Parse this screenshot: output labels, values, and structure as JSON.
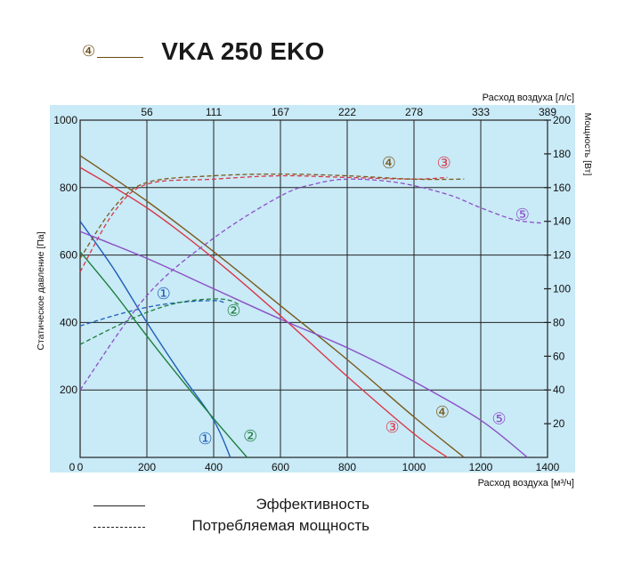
{
  "header": {
    "series_marker": "④",
    "title": "VKA 250 EKO"
  },
  "legend": {
    "efficiency_label": "Эффективность",
    "power_label": "Потребляемая мощность"
  },
  "chart_data": {
    "type": "line",
    "title": "VKA 250 EKO",
    "xlabel": "Расход воздуха [м³/ч]",
    "ylabel": "Статическое давление [Па]",
    "x2label": "Расход воздуха [л/с]",
    "y2label": "Мощность [Вт]",
    "xlim": [
      0,
      1400
    ],
    "ylim": [
      0,
      1000
    ],
    "y2lim": [
      0,
      200
    ],
    "xticks": [
      0,
      200,
      400,
      600,
      800,
      1000,
      1200,
      1400
    ],
    "yticks": [
      200,
      400,
      600,
      800,
      1000
    ],
    "y2ticks": [
      20,
      40,
      60,
      80,
      100,
      120,
      140,
      160,
      180,
      200
    ],
    "x2ticks": [
      {
        "at": 200,
        "label": "56"
      },
      {
        "at": 400,
        "label": "111"
      },
      {
        "at": 600,
        "label": "167"
      },
      {
        "at": 800,
        "label": "222"
      },
      {
        "at": 1000,
        "label": "278"
      },
      {
        "at": 1200,
        "label": "333"
      },
      {
        "at": 1400,
        "label": "389"
      }
    ],
    "y_zero_label": "0",
    "grid": true,
    "colors": {
      "plot_bg": "#c9eaf7",
      "grid": "#222222"
    },
    "series": [
      {
        "id": "1",
        "label": "①",
        "color": "#1f5fb8",
        "pressure": [
          [
            0,
            700
          ],
          [
            100,
            560
          ],
          [
            200,
            400
          ],
          [
            300,
            250
          ],
          [
            400,
            110
          ],
          [
            450,
            0
          ]
        ],
        "power": [
          [
            0,
            78
          ],
          [
            100,
            84
          ],
          [
            200,
            89
          ],
          [
            300,
            92
          ],
          [
            400,
            93
          ],
          [
            430,
            92
          ]
        ],
        "pressure_label_at": [
          375,
          56
        ],
        "power_label_at": [
          250,
          485
        ]
      },
      {
        "id": "2",
        "label": "②",
        "color": "#1c7f3c",
        "pressure": [
          [
            0,
            610
          ],
          [
            100,
            490
          ],
          [
            200,
            360
          ],
          [
            300,
            235
          ],
          [
            400,
            115
          ],
          [
            500,
            0
          ]
        ],
        "power": [
          [
            0,
            67
          ],
          [
            100,
            77
          ],
          [
            200,
            86
          ],
          [
            300,
            92
          ],
          [
            400,
            94
          ],
          [
            450,
            93
          ],
          [
            480,
            90
          ]
        ],
        "pressure_label_at": [
          510,
          63
        ],
        "power_label_at": [
          460,
          435
        ]
      },
      {
        "id": "3",
        "label": "③",
        "color": "#d8394a",
        "pressure": [
          [
            0,
            860
          ],
          [
            200,
            740
          ],
          [
            400,
            590
          ],
          [
            600,
            420
          ],
          [
            800,
            240
          ],
          [
            1000,
            70
          ],
          [
            1100,
            0
          ]
        ],
        "power": [
          [
            0,
            110
          ],
          [
            100,
            145
          ],
          [
            200,
            162
          ],
          [
            400,
            165
          ],
          [
            600,
            167
          ],
          [
            800,
            166
          ],
          [
            1000,
            165
          ],
          [
            1100,
            166
          ]
        ],
        "pressure_label_at": [
          935,
          90
        ],
        "power_label_at": [
          1090,
          873
        ]
      },
      {
        "id": "4",
        "label": "④",
        "color": "#7a5a1b",
        "pressure": [
          [
            0,
            895
          ],
          [
            200,
            760
          ],
          [
            400,
            610
          ],
          [
            600,
            450
          ],
          [
            800,
            290
          ],
          [
            1000,
            120
          ],
          [
            1150,
            0
          ]
        ],
        "power": [
          [
            0,
            118
          ],
          [
            100,
            148
          ],
          [
            200,
            163
          ],
          [
            400,
            167
          ],
          [
            600,
            168
          ],
          [
            800,
            167
          ],
          [
            1000,
            165
          ],
          [
            1150,
            165
          ]
        ],
        "pressure_label_at": [
          1085,
          135
        ],
        "power_label_at": [
          925,
          873
        ]
      },
      {
        "id": "5",
        "label": "⑤",
        "color": "#8b4fc6",
        "pressure": [
          [
            0,
            670
          ],
          [
            200,
            590
          ],
          [
            400,
            500
          ],
          [
            600,
            410
          ],
          [
            800,
            325
          ],
          [
            1000,
            225
          ],
          [
            1200,
            110
          ],
          [
            1340,
            0
          ]
        ],
        "power": [
          [
            0,
            40
          ],
          [
            200,
            96
          ],
          [
            400,
            130
          ],
          [
            600,
            155
          ],
          [
            700,
            162
          ],
          [
            800,
            165
          ],
          [
            950,
            163
          ],
          [
            1100,
            156
          ],
          [
            1200,
            148
          ],
          [
            1300,
            141
          ],
          [
            1380,
            139
          ]
        ],
        "pressure_label_at": [
          1255,
          115
        ],
        "power_label_at": [
          1325,
          720
        ]
      }
    ]
  }
}
